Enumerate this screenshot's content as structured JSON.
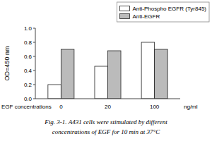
{
  "chart_data": {
    "type": "bar",
    "title": "Fig. 3-1.  A431 cells were stimulated by different",
    "subtitle": "concentrations of EGF for 10 min at 37°C",
    "x_label": "EGF concentrations",
    "y_label": "OD=450 nm",
    "annotations": [
      "ng/ml"
    ],
    "categories": [
      "0",
      "20",
      "100"
    ],
    "series": [
      {
        "name": "Anti-Phospho EGFR (Tyr845)",
        "color": "white",
        "values": [
          0.2,
          0.46,
          0.8
        ]
      },
      {
        "name": "Anti-EGFR",
        "color": "#bbbbbb",
        "values": [
          0.7,
          0.68,
          0.7
        ]
      }
    ],
    "ylim": [
      0.0,
      1.0
    ],
    "yticks": [
      {
        "value": 0.0,
        "label": "0.0"
      },
      0.2,
      0.4,
      0.6,
      0.8,
      {
        "value": 1.0,
        "label": "1.0"
      }
    ],
    "grid": false,
    "legend": "upper-right"
  }
}
